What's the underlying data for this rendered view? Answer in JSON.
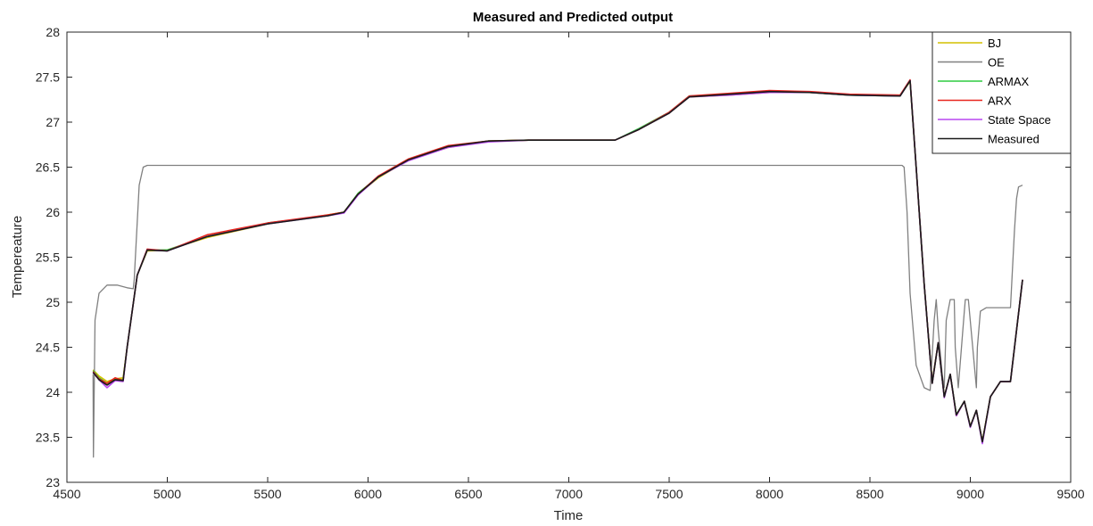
{
  "chart_data": {
    "type": "line",
    "title": "Measured and Predicted output",
    "xlabel": "Time",
    "ylabel": "Tempereature",
    "xlim": [
      4500,
      9500
    ],
    "ylim": [
      23,
      28
    ],
    "xticks": [
      "4500",
      "5000",
      "5500",
      "6000",
      "6500",
      "7000",
      "7500",
      "8000",
      "8500",
      "9000",
      "9500"
    ],
    "yticks": [
      "23",
      "23.5",
      "24",
      "24.5",
      "25",
      "25.5",
      "26",
      "26.5",
      "27",
      "27.5",
      "28"
    ],
    "grid": false,
    "legend_position": "top-right",
    "series": [
      {
        "name": "BJ",
        "color": "#d4c100",
        "x": [
          4630,
          4660,
          4700,
          4740,
          4780,
          4800,
          4850,
          4900,
          5000,
          5200,
          5500,
          5800,
          5880,
          5950,
          6050,
          6200,
          6400,
          6600,
          6800,
          7000,
          7230,
          7350,
          7500,
          7600,
          7800,
          8000,
          8200,
          8400,
          8650,
          8700,
          8730,
          8770,
          8810,
          8840,
          8870,
          8900,
          8930,
          8970,
          9000,
          9030,
          9060,
          9100,
          9150,
          9200,
          9260
        ],
        "y": [
          24.25,
          24.18,
          24.12,
          24.15,
          24.16,
          24.5,
          25.3,
          25.57,
          25.58,
          25.72,
          25.87,
          25.97,
          26.0,
          26.2,
          26.38,
          26.58,
          26.72,
          26.79,
          26.8,
          26.8,
          26.8,
          26.92,
          27.1,
          27.28,
          27.3,
          27.33,
          27.33,
          27.3,
          27.3,
          27.45,
          26.5,
          25.2,
          24.12,
          24.55,
          23.95,
          24.2,
          23.75,
          23.9,
          23.62,
          23.8,
          23.45,
          23.95,
          24.12,
          24.12,
          25.25
        ]
      },
      {
        "name": "OE",
        "color": "#808080",
        "x": [
          4630,
          4632,
          4640,
          4660,
          4700,
          4750,
          4800,
          4830,
          4835,
          4860,
          4880,
          4900,
          5000,
          6000,
          7000,
          8000,
          8660,
          8670,
          8685,
          8700,
          8730,
          8770,
          8800,
          8820,
          8830,
          8840,
          8860,
          8870,
          8880,
          8900,
          8920,
          8925,
          8940,
          8970,
          8975,
          8990,
          9030,
          9035,
          9050,
          9080,
          9100,
          9200,
          9220,
          9230,
          9240,
          9260
        ],
        "y": [
          24.2,
          23.28,
          24.8,
          25.1,
          25.19,
          25.19,
          25.16,
          25.15,
          25.25,
          26.3,
          26.5,
          26.52,
          26.52,
          26.52,
          26.52,
          26.52,
          26.52,
          26.5,
          26.0,
          25.1,
          24.3,
          24.05,
          24.02,
          24.8,
          25.03,
          24.7,
          24.2,
          24.05,
          24.8,
          25.03,
          25.03,
          24.5,
          24.05,
          24.9,
          25.03,
          25.03,
          24.05,
          24.5,
          24.9,
          24.94,
          24.94,
          24.94,
          25.8,
          26.15,
          26.28,
          26.3
        ]
      },
      {
        "name": "ARMAX",
        "color": "#2ecc40",
        "x": [
          4630,
          4660,
          4700,
          4740,
          4780,
          4800,
          4850,
          4900,
          5000,
          5200,
          5500,
          5800,
          5880,
          5950,
          6050,
          6200,
          6400,
          6600,
          6800,
          7000,
          7230,
          7350,
          7500,
          7600,
          7800,
          8000,
          8200,
          8400,
          8650,
          8700,
          8730,
          8770,
          8810,
          8840,
          8870,
          8900,
          8930,
          8970,
          9000,
          9030,
          9060,
          9100,
          9150,
          9200,
          9260
        ],
        "y": [
          24.24,
          24.16,
          24.1,
          24.14,
          24.14,
          24.5,
          25.3,
          25.58,
          25.58,
          25.73,
          25.88,
          25.96,
          26.0,
          26.21,
          26.39,
          26.58,
          26.73,
          26.79,
          26.8,
          26.8,
          26.8,
          26.93,
          27.11,
          27.29,
          27.31,
          27.34,
          27.33,
          27.3,
          27.29,
          27.46,
          26.5,
          25.2,
          24.1,
          24.55,
          23.95,
          24.2,
          23.75,
          23.9,
          23.62,
          23.8,
          23.45,
          23.95,
          24.12,
          24.12,
          25.25
        ]
      },
      {
        "name": "ARX",
        "color": "#e8261f",
        "x": [
          4630,
          4660,
          4700,
          4740,
          4780,
          4800,
          4850,
          4900,
          5000,
          5200,
          5500,
          5800,
          5880,
          5950,
          6050,
          6200,
          6400,
          6600,
          6800,
          7000,
          7230,
          7350,
          7500,
          7600,
          7800,
          8000,
          8200,
          8400,
          8650,
          8700,
          8730,
          8770,
          8810,
          8840,
          8870,
          8900,
          8930,
          8970,
          9000,
          9030,
          9060,
          9100,
          9150,
          9200,
          9260
        ],
        "y": [
          24.23,
          24.15,
          24.1,
          24.16,
          24.13,
          24.5,
          25.3,
          25.59,
          25.57,
          25.75,
          25.88,
          25.97,
          26.0,
          26.2,
          26.4,
          26.59,
          26.74,
          26.79,
          26.8,
          26.8,
          26.8,
          26.92,
          27.11,
          27.29,
          27.32,
          27.35,
          27.34,
          27.31,
          27.3,
          27.47,
          26.5,
          25.2,
          24.1,
          24.55,
          23.95,
          24.2,
          23.74,
          23.9,
          23.62,
          23.8,
          23.45,
          23.95,
          24.12,
          24.12,
          25.25
        ]
      },
      {
        "name": "State Space",
        "color": "#b847f0",
        "x": [
          4630,
          4660,
          4700,
          4740,
          4780,
          4800,
          4850,
          4900,
          5000,
          5200,
          5500,
          5800,
          5880,
          5950,
          6050,
          6200,
          6400,
          6600,
          6800,
          7000,
          7230,
          7350,
          7500,
          7600,
          7800,
          8000,
          8200,
          8400,
          8650,
          8700,
          8730,
          8770,
          8810,
          8840,
          8870,
          8900,
          8930,
          8970,
          9000,
          9030,
          9060,
          9100,
          9150,
          9200,
          9260
        ],
        "y": [
          24.22,
          24.14,
          24.05,
          24.13,
          24.12,
          24.5,
          25.3,
          25.58,
          25.57,
          25.73,
          25.87,
          25.96,
          25.99,
          26.19,
          26.39,
          26.57,
          26.72,
          26.78,
          26.8,
          26.8,
          26.8,
          26.92,
          27.1,
          27.28,
          27.3,
          27.33,
          27.33,
          27.3,
          27.29,
          27.46,
          26.5,
          25.2,
          24.1,
          24.55,
          23.94,
          24.2,
          23.74,
          23.9,
          23.61,
          23.8,
          23.43,
          23.95,
          24.12,
          24.12,
          25.25
        ]
      },
      {
        "name": "Measured",
        "color": "#1a1a1a",
        "x": [
          4630,
          4660,
          4700,
          4740,
          4780,
          4800,
          4850,
          4900,
          5000,
          5200,
          5500,
          5800,
          5880,
          5950,
          6050,
          6200,
          6400,
          6600,
          6800,
          7000,
          7230,
          7350,
          7500,
          7600,
          7800,
          8000,
          8200,
          8400,
          8650,
          8700,
          8730,
          8770,
          8810,
          8840,
          8870,
          8900,
          8930,
          8970,
          9000,
          9030,
          9060,
          9100,
          9150,
          9200,
          9260
        ],
        "y": [
          24.22,
          24.14,
          24.08,
          24.14,
          24.13,
          24.5,
          25.3,
          25.58,
          25.57,
          25.73,
          25.87,
          25.96,
          26.0,
          26.2,
          26.39,
          26.58,
          26.73,
          26.79,
          26.8,
          26.8,
          26.8,
          26.92,
          27.1,
          27.28,
          27.31,
          27.34,
          27.33,
          27.3,
          27.29,
          27.46,
          26.5,
          25.2,
          24.1,
          24.55,
          23.95,
          24.2,
          23.75,
          23.9,
          23.62,
          23.8,
          23.45,
          23.95,
          24.12,
          24.12,
          25.25
        ]
      }
    ]
  }
}
